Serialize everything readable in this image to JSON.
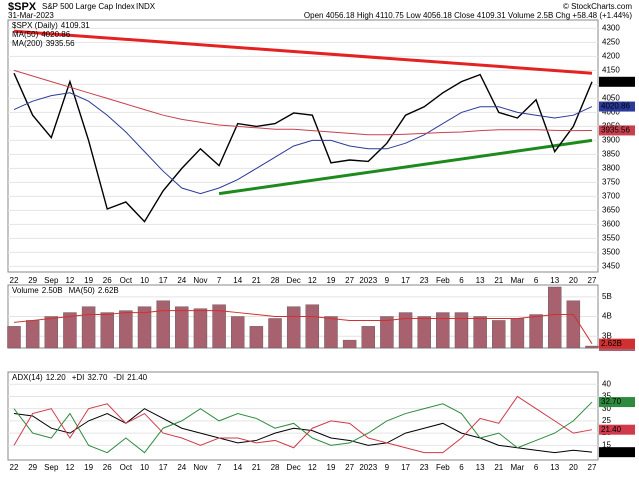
{
  "header": {
    "symbol": "$SPX",
    "name": "S&P 500 Large Cap Index",
    "exchange": "INDX",
    "date": "31-Mar-2023",
    "source": "© StockCharts.com",
    "quote": "Open 4056.18 High 4110.75 Low 4056.18 Close 4109.31 Volume 2.5B Chg +58.48 (+1.44%)"
  },
  "chart_data": [
    {
      "type": "line",
      "categories": [
        "22",
        "29",
        "Sep",
        "12",
        "19",
        "26",
        "Oct",
        "10",
        "17",
        "24",
        "Nov",
        "7",
        "14",
        "21",
        "28",
        "Dec",
        "12",
        "19",
        "27",
        "2023",
        "9",
        "17",
        "23",
        "Feb",
        "6",
        "13",
        "21",
        "Mar",
        "6",
        "13",
        "20",
        "27"
      ],
      "ylim": [
        3430,
        4330
      ],
      "yticks": [
        3450,
        3500,
        3550,
        3600,
        3650,
        3700,
        3750,
        3800,
        3850,
        3900,
        3950,
        4000,
        4050,
        4100,
        4150,
        4200,
        4250,
        4300
      ],
      "grid": true,
      "series": [
        {
          "name": "$SPX (Daily)",
          "color": "#000000",
          "values": [
            4140,
            3990,
            3910,
            4110,
            3900,
            3655,
            3680,
            3610,
            3720,
            3800,
            3870,
            3810,
            3960,
            3950,
            3960,
            3998,
            3990,
            3820,
            3830,
            3825,
            3890,
            3990,
            4020,
            4070,
            4110,
            4135,
            4000,
            3980,
            4045,
            3860,
            3950,
            4109.31
          ]
        },
        {
          "name": "MA(50)",
          "color": "#2a3a9a",
          "values": [
            4010,
            4040,
            4060,
            4070,
            4040,
            3990,
            3930,
            3860,
            3790,
            3730,
            3710,
            3730,
            3760,
            3800,
            3840,
            3880,
            3900,
            3900,
            3880,
            3870,
            3870,
            3890,
            3920,
            3960,
            4000,
            4020,
            4020,
            4000,
            3990,
            3980,
            3990,
            4020.86
          ]
        },
        {
          "name": "MA(200)",
          "color": "#c8404e",
          "values": [
            4150,
            4130,
            4110,
            4090,
            4070,
            4050,
            4030,
            4010,
            3990,
            3975,
            3965,
            3955,
            3950,
            3945,
            3940,
            3940,
            3935,
            3930,
            3925,
            3920,
            3920,
            3922,
            3925,
            3928,
            3930,
            3935,
            3938,
            3938,
            3938,
            3936,
            3935,
            3935.56
          ]
        }
      ],
      "trendlines": [
        {
          "color": "#e52222",
          "values": [
            4290,
            null,
            null,
            null,
            null,
            null,
            null,
            null,
            null,
            null,
            null,
            null,
            null,
            null,
            null,
            null,
            null,
            null,
            null,
            null,
            null,
            null,
            null,
            null,
            null,
            null,
            null,
            null,
            null,
            null,
            null,
            4140
          ]
        },
        {
          "color": "#1d8a1d",
          "values": [
            null,
            null,
            null,
            null,
            null,
            null,
            null,
            null,
            null,
            null,
            null,
            3710,
            null,
            null,
            null,
            null,
            null,
            null,
            null,
            null,
            null,
            null,
            null,
            null,
            null,
            null,
            null,
            null,
            null,
            null,
            null,
            3900
          ]
        }
      ]
    },
    {
      "type": "bar",
      "ylim": [
        2.4,
        5.6
      ],
      "yticks": [
        {
          "value": 3,
          "label": "3B"
        },
        {
          "value": 4,
          "label": "4B"
        },
        {
          "value": 5,
          "label": "5B"
        }
      ],
      "series": [
        {
          "name": "Volume",
          "color": "#a8616e",
          "values": [
            3.5,
            3.8,
            4.0,
            4.2,
            4.5,
            4.2,
            4.3,
            4.5,
            4.8,
            4.5,
            4.4,
            4.6,
            4.0,
            3.5,
            3.9,
            4.5,
            4.6,
            4.0,
            2.8,
            3.5,
            4.0,
            4.2,
            4.0,
            4.2,
            4.2,
            4.0,
            3.8,
            3.9,
            4.1,
            5.5,
            4.8,
            2.5
          ],
          "value_labels": [
            null,
            null,
            null,
            null,
            null,
            null,
            null,
            null,
            null,
            null,
            null,
            null,
            null,
            null,
            null,
            null,
            null,
            null,
            null,
            null,
            null,
            null,
            null,
            null,
            null,
            null,
            null,
            null,
            null,
            null,
            null,
            "2.50B"
          ]
        },
        {
          "name": "MA(50)",
          "color": "#d03030",
          "values": [
            3.7,
            3.8,
            3.9,
            4.0,
            4.1,
            4.1,
            4.2,
            4.2,
            4.3,
            4.3,
            4.3,
            4.3,
            4.2,
            4.1,
            4.0,
            4.0,
            4.0,
            3.9,
            3.8,
            3.8,
            3.8,
            3.9,
            3.9,
            3.9,
            3.9,
            3.9,
            3.9,
            3.9,
            4.0,
            4.1,
            4.1,
            2.62
          ],
          "value_labels": [
            null,
            null,
            null,
            null,
            null,
            null,
            null,
            null,
            null,
            null,
            null,
            null,
            null,
            null,
            null,
            null,
            null,
            null,
            null,
            null,
            null,
            null,
            null,
            null,
            null,
            null,
            null,
            null,
            null,
            null,
            null,
            "2.62B"
          ]
        }
      ]
    },
    {
      "type": "line",
      "ylim": [
        9,
        45
      ],
      "yticks": [
        15,
        20,
        25,
        30,
        35,
        40
      ],
      "series": [
        {
          "name": "ADX(14)",
          "color": "#000000",
          "values": [
            28,
            27,
            22,
            20,
            25,
            28,
            24,
            30,
            26,
            22,
            20,
            18,
            16,
            17,
            20,
            22,
            21,
            18,
            17,
            15,
            16,
            20,
            22,
            24,
            20,
            18,
            15,
            14,
            13,
            12,
            13,
            12.2
          ],
          "value_labels": [
            null,
            null,
            null,
            null,
            null,
            null,
            null,
            null,
            null,
            null,
            null,
            null,
            null,
            null,
            null,
            null,
            null,
            null,
            null,
            null,
            null,
            null,
            null,
            null,
            null,
            null,
            null,
            null,
            null,
            null,
            null,
            "12.20"
          ]
        },
        {
          "name": "+DI",
          "color": "#2e8b3e",
          "values": [
            30,
            20,
            18,
            28,
            15,
            12,
            18,
            12,
            22,
            25,
            30,
            25,
            28,
            26,
            22,
            24,
            18,
            15,
            16,
            20,
            25,
            28,
            30,
            32,
            28,
            18,
            20,
            14,
            17,
            20,
            25,
            32.7
          ],
          "value_labels": [
            null,
            null,
            null,
            null,
            null,
            null,
            null,
            null,
            null,
            null,
            null,
            null,
            null,
            null,
            null,
            null,
            null,
            null,
            null,
            null,
            null,
            null,
            null,
            null,
            null,
            null,
            null,
            null,
            null,
            null,
            null,
            "32.70"
          ]
        },
        {
          "name": "-DI",
          "color": "#d03a4a",
          "values": [
            15,
            28,
            30,
            18,
            30,
            32,
            24,
            28,
            20,
            18,
            15,
            18,
            18,
            16,
            17,
            14,
            22,
            25,
            24,
            18,
            16,
            14,
            12,
            12,
            18,
            26,
            24,
            35,
            30,
            25,
            20,
            21.4
          ],
          "value_labels": [
            null,
            null,
            null,
            null,
            null,
            null,
            null,
            null,
            null,
            null,
            null,
            null,
            null,
            null,
            null,
            null,
            null,
            null,
            null,
            null,
            null,
            null,
            null,
            null,
            null,
            null,
            null,
            null,
            null,
            null,
            null,
            "21.40"
          ]
        }
      ]
    }
  ]
}
